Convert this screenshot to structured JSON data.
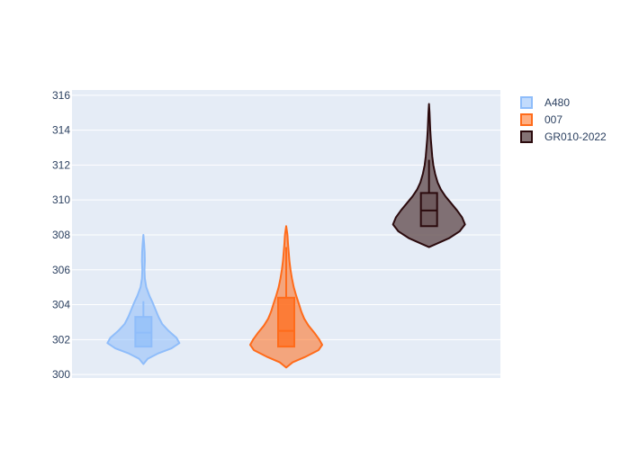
{
  "colors": {
    "plot_bg": "#e5ecf6",
    "grid": "#ffffff",
    "text": "#2a3f5f"
  },
  "chart_data": {
    "type": "violin",
    "title": "",
    "xlabel": "",
    "ylabel": "",
    "ylim": [
      299.8,
      316.3
    ],
    "yticks": [
      300,
      302,
      304,
      306,
      308,
      310,
      312,
      314,
      316
    ],
    "grid": true,
    "legend_position": "right",
    "series": [
      {
        "name": "A480",
        "color": "#8fbdfa",
        "fill_opacity": 0.55,
        "min": 300.6,
        "max": 308.0,
        "box": {
          "q1": 301.6,
          "median": 302.4,
          "q3": 303.3,
          "whisker_low": 301.6,
          "whisker_high": 304.2
        },
        "density": [
          [
            300.6,
            0.0
          ],
          [
            300.9,
            0.12
          ],
          [
            301.2,
            0.4
          ],
          [
            301.5,
            0.78
          ],
          [
            301.8,
            1.0
          ],
          [
            302.1,
            0.92
          ],
          [
            302.5,
            0.7
          ],
          [
            302.9,
            0.52
          ],
          [
            303.3,
            0.42
          ],
          [
            303.7,
            0.34
          ],
          [
            304.1,
            0.26
          ],
          [
            304.5,
            0.17
          ],
          [
            305.0,
            0.08
          ],
          [
            305.5,
            0.04
          ],
          [
            306.0,
            0.03
          ],
          [
            306.5,
            0.04
          ],
          [
            307.0,
            0.035
          ],
          [
            307.5,
            0.02
          ],
          [
            308.0,
            0.0
          ]
        ]
      },
      {
        "name": "007",
        "color": "#ff6b1a",
        "fill_opacity": 0.55,
        "min": 300.4,
        "max": 308.5,
        "box": {
          "q1": 301.6,
          "median": 302.5,
          "q3": 304.4,
          "whisker_low": 301.6,
          "whisker_high": 307.3
        },
        "density": [
          [
            300.4,
            0.0
          ],
          [
            300.7,
            0.18
          ],
          [
            301.0,
            0.52
          ],
          [
            301.4,
            0.9
          ],
          [
            301.7,
            1.0
          ],
          [
            302.0,
            0.92
          ],
          [
            302.4,
            0.78
          ],
          [
            302.8,
            0.62
          ],
          [
            303.2,
            0.5
          ],
          [
            303.6,
            0.42
          ],
          [
            304.0,
            0.36
          ],
          [
            304.5,
            0.28
          ],
          [
            305.0,
            0.21
          ],
          [
            305.5,
            0.16
          ],
          [
            306.0,
            0.12
          ],
          [
            306.5,
            0.09
          ],
          [
            307.0,
            0.07
          ],
          [
            307.5,
            0.05
          ],
          [
            308.0,
            0.035
          ],
          [
            308.5,
            0.0
          ]
        ]
      },
      {
        "name": "GR010-2022",
        "color": "#2b0a0d",
        "fill_color": "#6e5a5d",
        "fill_opacity": 0.85,
        "min": 307.3,
        "max": 315.5,
        "box": {
          "q1": 308.5,
          "median": 309.4,
          "q3": 310.4,
          "whisker_low": 308.5,
          "whisker_high": 312.3
        },
        "density": [
          [
            307.3,
            0.0
          ],
          [
            307.5,
            0.22
          ],
          [
            307.8,
            0.55
          ],
          [
            308.2,
            0.85
          ],
          [
            308.6,
            1.0
          ],
          [
            309.0,
            0.92
          ],
          [
            309.4,
            0.78
          ],
          [
            309.8,
            0.62
          ],
          [
            310.2,
            0.46
          ],
          [
            310.6,
            0.33
          ],
          [
            311.0,
            0.24
          ],
          [
            311.5,
            0.17
          ],
          [
            312.0,
            0.12
          ],
          [
            312.5,
            0.09
          ],
          [
            313.0,
            0.07
          ],
          [
            313.5,
            0.05
          ],
          [
            314.0,
            0.035
          ],
          [
            314.5,
            0.025
          ],
          [
            315.0,
            0.015
          ],
          [
            315.5,
            0.0
          ]
        ]
      }
    ]
  }
}
